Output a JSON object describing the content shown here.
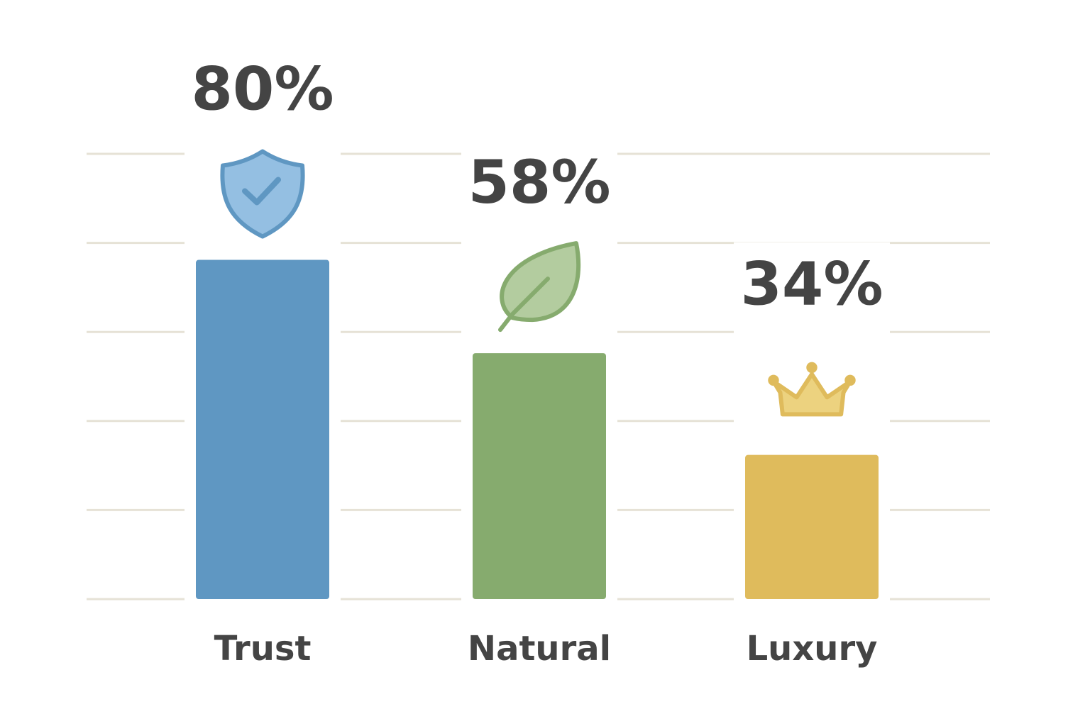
{
  "chart_data": {
    "type": "bar",
    "categories": [
      "Trust",
      "Natural",
      "Luxury"
    ],
    "values": [
      80,
      58,
      34
    ],
    "value_labels": [
      "80%",
      "58%",
      "34%"
    ],
    "colors": [
      "#5f97c2",
      "#86ab6e",
      "#dfbb5c"
    ],
    "ylim": [
      0,
      105
    ],
    "grid": true
  }
}
